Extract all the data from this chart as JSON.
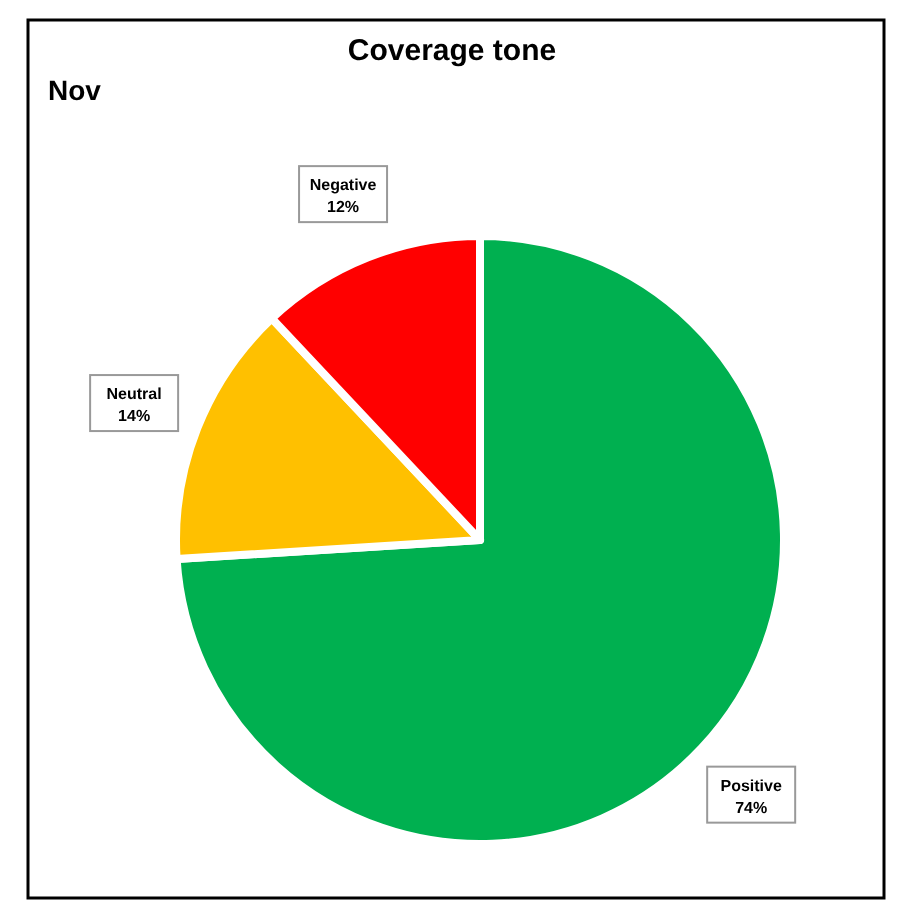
{
  "chart_data": {
    "type": "pie",
    "title": "Coverage tone",
    "subtitle": "Nov",
    "categories": [
      "Positive",
      "Neutral",
      "Negative"
    ],
    "values": [
      74,
      14,
      12
    ],
    "value_labels": [
      "74%",
      "14%",
      "12%"
    ],
    "colors": [
      "#00b050",
      "#ffc000",
      "#ff0000"
    ]
  }
}
